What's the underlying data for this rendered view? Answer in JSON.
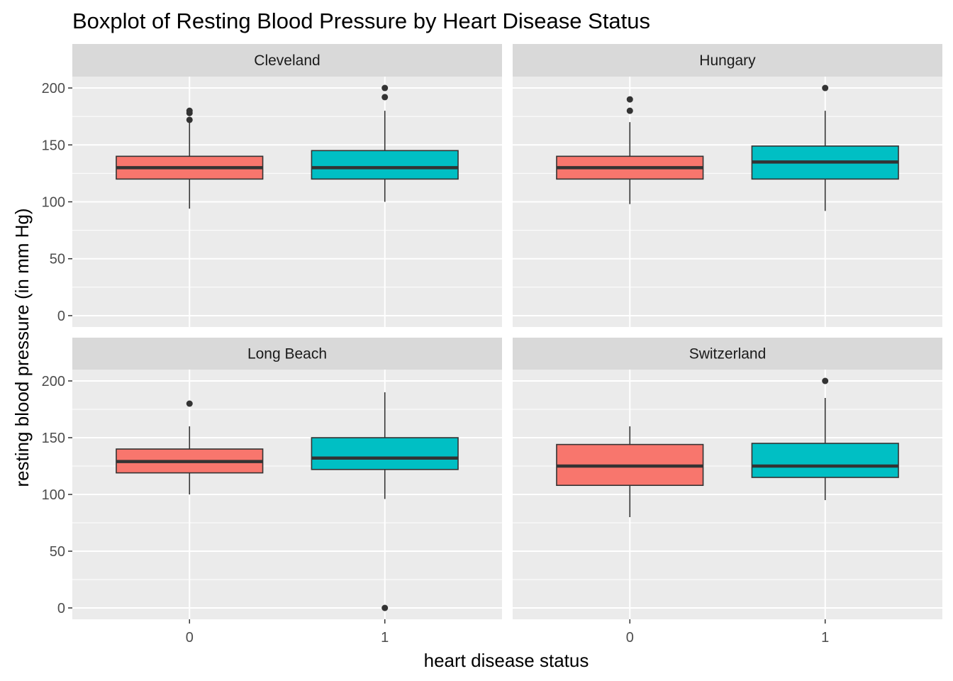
{
  "chart_data": {
    "type": "boxplot",
    "title": "Boxplot of Resting Blood Pressure by Heart Disease Status",
    "xlabel": "heart disease status",
    "ylabel": "resting blood pressure (in mm Hg)",
    "categories": [
      "0",
      "1"
    ],
    "ylim": [
      -10,
      210
    ],
    "yticks": [
      0,
      50,
      100,
      150,
      200
    ],
    "colors": {
      "0": "#F8766D",
      "1": "#00BFC4"
    },
    "panel_background": "#EBEBEB",
    "strip_background": "#D9D9D9",
    "grid_color": "#FFFFFF",
    "facets": [
      {
        "name": "Cleveland",
        "boxes": [
          {
            "group": "0",
            "lower_whisker": 94,
            "q1": 120,
            "median": 130,
            "q3": 140,
            "upper_whisker": 170,
            "outliers": [
              172,
              178,
              180
            ]
          },
          {
            "group": "1",
            "lower_whisker": 100,
            "q1": 120,
            "median": 130,
            "q3": 145,
            "upper_whisker": 180,
            "outliers": [
              192,
              200
            ]
          }
        ]
      },
      {
        "name": "Hungary",
        "boxes": [
          {
            "group": "0",
            "lower_whisker": 98,
            "q1": 120,
            "median": 130,
            "q3": 140,
            "upper_whisker": 170,
            "outliers": [
              180,
              190
            ]
          },
          {
            "group": "1",
            "lower_whisker": 92,
            "q1": 120,
            "median": 135,
            "q3": 149,
            "upper_whisker": 180,
            "outliers": [
              200
            ]
          }
        ]
      },
      {
        "name": "Long Beach",
        "boxes": [
          {
            "group": "0",
            "lower_whisker": 100,
            "q1": 119,
            "median": 129,
            "q3": 140,
            "upper_whisker": 160,
            "outliers": [
              180
            ]
          },
          {
            "group": "1",
            "lower_whisker": 96,
            "q1": 122,
            "median": 132,
            "q3": 150,
            "upper_whisker": 190,
            "outliers": [
              0
            ]
          }
        ]
      },
      {
        "name": "Switzerland",
        "boxes": [
          {
            "group": "0",
            "lower_whisker": 80,
            "q1": 108,
            "median": 125,
            "q3": 144,
            "upper_whisker": 160,
            "outliers": []
          },
          {
            "group": "1",
            "lower_whisker": 95,
            "q1": 115,
            "median": 125,
            "q3": 145,
            "upper_whisker": 185,
            "outliers": [
              200
            ]
          }
        ]
      }
    ]
  }
}
